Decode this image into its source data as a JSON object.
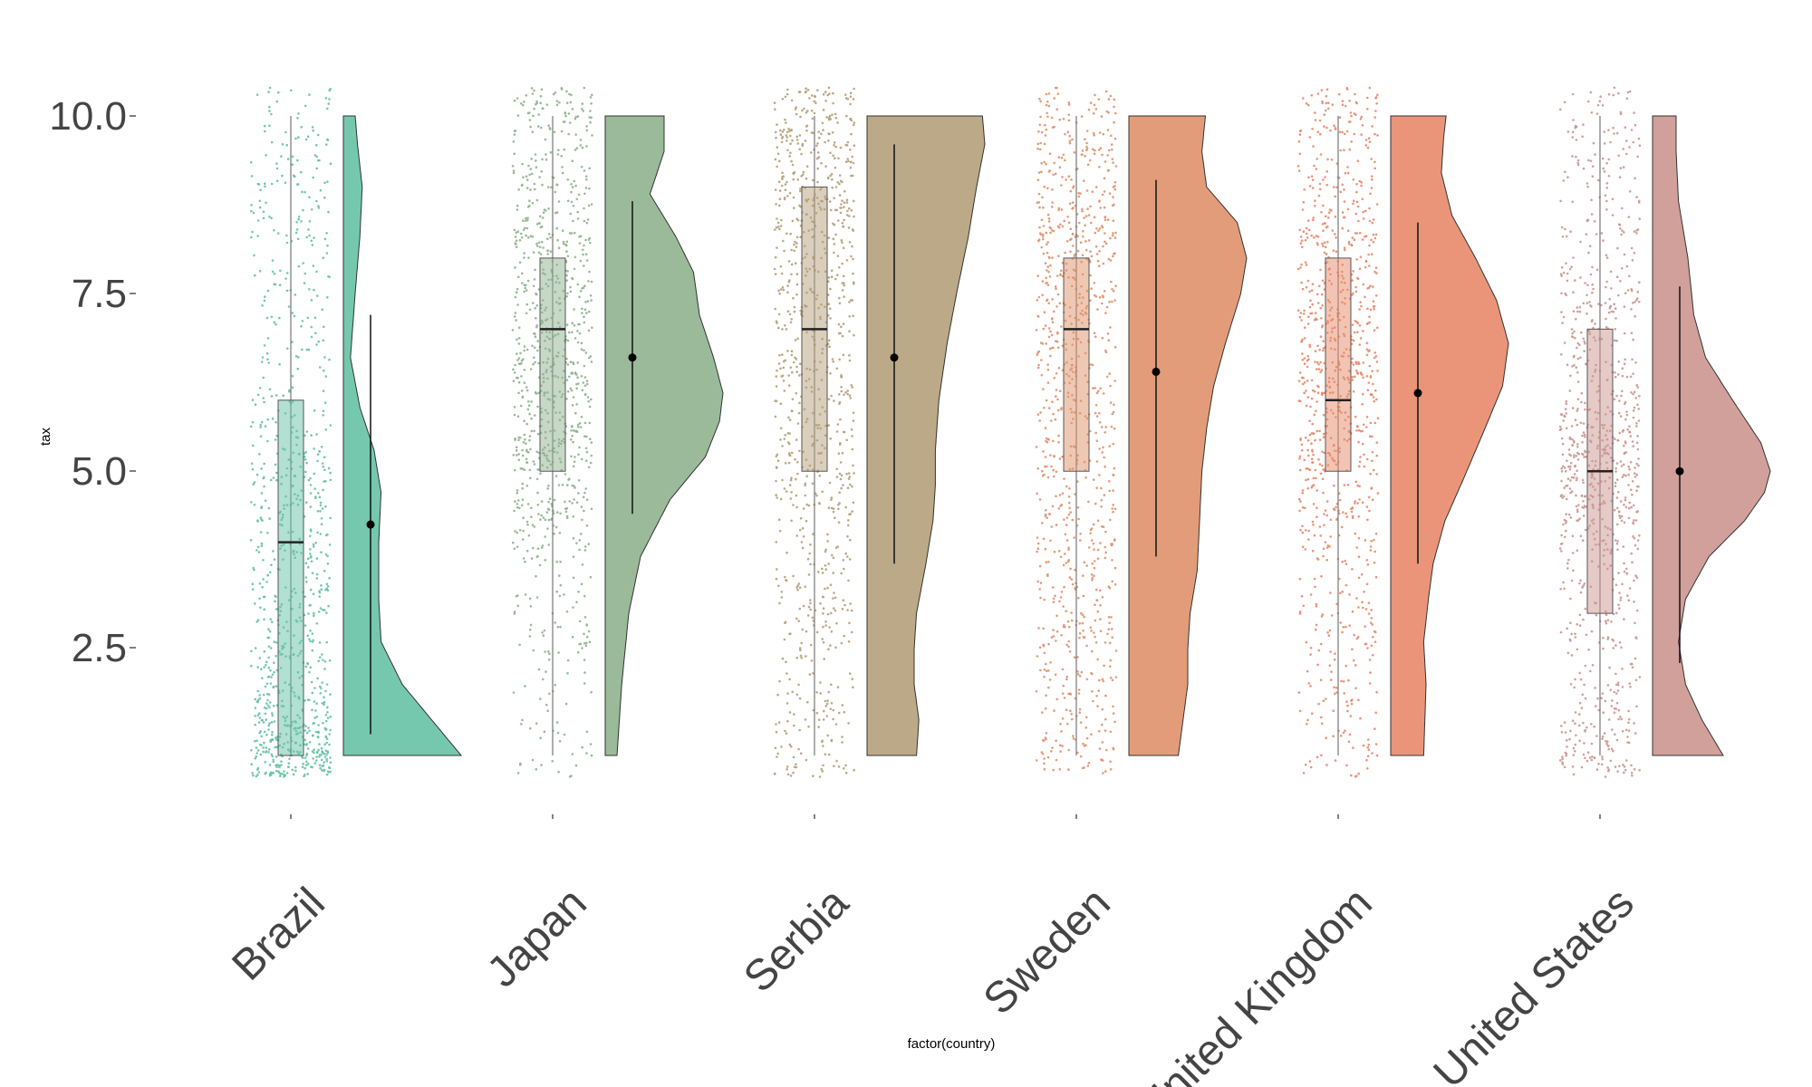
{
  "chart_data": {
    "type": "raincloud",
    "title": "",
    "xlabel": "factor(country)",
    "ylabel": "tax",
    "ylim": [
      0.3,
      10.7
    ],
    "yticks": [
      2.5,
      5.0,
      7.5,
      10.0
    ],
    "ytick_labels": [
      "2.5",
      "5.0",
      "7.5",
      "10.0"
    ],
    "grid": false,
    "legend": "none",
    "categories": [
      "Brazil",
      "Japan",
      "Serbia",
      "Sweden",
      "United Kingdom",
      "United States"
    ],
    "series": [
      {
        "name": "Brazil",
        "color": "#66c2a5",
        "box": {
          "q1": 1.0,
          "median": 4.0,
          "q3": 6.0,
          "whisker_low": 1.0,
          "whisker_high": 10.0
        },
        "mean": 4.25,
        "mean_sd_range": [
          1.3,
          7.2
        ],
        "density_profile": [
          [
            1.0,
            1.0
          ],
          [
            1.5,
            0.75
          ],
          [
            2.0,
            0.5
          ],
          [
            2.6,
            0.32
          ],
          [
            3.2,
            0.3
          ],
          [
            4.0,
            0.3
          ],
          [
            4.7,
            0.32
          ],
          [
            5.3,
            0.26
          ],
          [
            5.9,
            0.14
          ],
          [
            6.6,
            0.06
          ],
          [
            7.5,
            0.1
          ],
          [
            8.3,
            0.14
          ],
          [
            9.0,
            0.16
          ],
          [
            9.6,
            0.12
          ],
          [
            10.0,
            0.1
          ]
        ]
      },
      {
        "name": "Japan",
        "color": "#8fb28f",
        "box": {
          "q1": 5.0,
          "median": 7.0,
          "q3": 8.0,
          "whisker_low": 1.0,
          "whisker_high": 10.0
        },
        "mean": 6.6,
        "mean_sd_range": [
          4.4,
          8.8
        ],
        "density_profile": [
          [
            1.0,
            0.1
          ],
          [
            2.0,
            0.14
          ],
          [
            3.0,
            0.2
          ],
          [
            3.8,
            0.3
          ],
          [
            4.6,
            0.55
          ],
          [
            5.2,
            0.85
          ],
          [
            5.7,
            0.97
          ],
          [
            6.1,
            1.0
          ],
          [
            6.6,
            0.92
          ],
          [
            7.2,
            0.8
          ],
          [
            7.8,
            0.75
          ],
          [
            8.3,
            0.6
          ],
          [
            8.9,
            0.38
          ],
          [
            9.5,
            0.5
          ],
          [
            10.0,
            0.5
          ]
        ]
      },
      {
        "name": "Serbia",
        "color": "#b5a07a",
        "box": {
          "q1": 5.0,
          "median": 7.0,
          "q3": 9.0,
          "whisker_low": 1.0,
          "whisker_high": 10.0
        },
        "mean": 6.6,
        "mean_sd_range": [
          3.7,
          9.6
        ],
        "density_profile": [
          [
            1.0,
            0.42
          ],
          [
            1.5,
            0.44
          ],
          [
            2.0,
            0.4
          ],
          [
            2.5,
            0.4
          ],
          [
            3.0,
            0.42
          ],
          [
            3.7,
            0.5
          ],
          [
            4.3,
            0.56
          ],
          [
            4.8,
            0.58
          ],
          [
            5.3,
            0.58
          ],
          [
            6.0,
            0.61
          ],
          [
            6.8,
            0.68
          ],
          [
            7.5,
            0.76
          ],
          [
            8.3,
            0.86
          ],
          [
            9.0,
            0.93
          ],
          [
            9.6,
            1.0
          ],
          [
            10.0,
            0.98
          ]
        ]
      },
      {
        "name": "Sweden",
        "color": "#e0916a",
        "box": {
          "q1": 5.0,
          "median": 7.0,
          "q3": 8.0,
          "whisker_low": 1.0,
          "whisker_high": 10.0
        },
        "mean": 6.4,
        "mean_sd_range": [
          3.8,
          9.1
        ],
        "density_profile": [
          [
            1.0,
            0.42
          ],
          [
            1.5,
            0.46
          ],
          [
            2.0,
            0.5
          ],
          [
            2.5,
            0.5
          ],
          [
            3.0,
            0.52
          ],
          [
            3.6,
            0.58
          ],
          [
            4.3,
            0.6
          ],
          [
            5.0,
            0.62
          ],
          [
            5.6,
            0.66
          ],
          [
            6.2,
            0.72
          ],
          [
            6.8,
            0.82
          ],
          [
            7.5,
            0.95
          ],
          [
            8.0,
            1.0
          ],
          [
            8.5,
            0.92
          ],
          [
            9.0,
            0.66
          ],
          [
            9.5,
            0.62
          ],
          [
            10.0,
            0.65
          ]
        ]
      },
      {
        "name": "United Kingdom",
        "color": "#e8896a",
        "box": {
          "q1": 5.0,
          "median": 6.0,
          "q3": 8.0,
          "whisker_low": 1.0,
          "whisker_high": 10.0
        },
        "mean": 6.1,
        "mean_sd_range": [
          3.7,
          8.5
        ],
        "density_profile": [
          [
            1.0,
            0.28
          ],
          [
            2.0,
            0.3
          ],
          [
            2.6,
            0.28
          ],
          [
            3.2,
            0.32
          ],
          [
            3.7,
            0.36
          ],
          [
            4.3,
            0.46
          ],
          [
            4.9,
            0.62
          ],
          [
            5.6,
            0.8
          ],
          [
            6.2,
            0.95
          ],
          [
            6.8,
            1.0
          ],
          [
            7.4,
            0.9
          ],
          [
            8.0,
            0.72
          ],
          [
            8.6,
            0.52
          ],
          [
            9.2,
            0.43
          ],
          [
            9.7,
            0.45
          ],
          [
            10.0,
            0.47
          ]
        ]
      },
      {
        "name": "United States",
        "color": "#cc9690",
        "box": {
          "q1": 3.0,
          "median": 5.0,
          "q3": 7.0,
          "whisker_low": 1.0,
          "whisker_high": 10.0
        },
        "mean": 5.0,
        "mean_sd_range": [
          2.3,
          7.6
        ],
        "density_profile": [
          [
            1.0,
            0.6
          ],
          [
            1.5,
            0.42
          ],
          [
            2.0,
            0.28
          ],
          [
            2.6,
            0.22
          ],
          [
            3.2,
            0.28
          ],
          [
            3.8,
            0.48
          ],
          [
            4.3,
            0.78
          ],
          [
            4.7,
            0.95
          ],
          [
            5.0,
            1.0
          ],
          [
            5.4,
            0.92
          ],
          [
            6.0,
            0.68
          ],
          [
            6.6,
            0.45
          ],
          [
            7.2,
            0.35
          ],
          [
            8.0,
            0.3
          ],
          [
            8.8,
            0.22
          ],
          [
            9.5,
            0.2
          ],
          [
            10.0,
            0.2
          ]
        ]
      }
    ]
  }
}
